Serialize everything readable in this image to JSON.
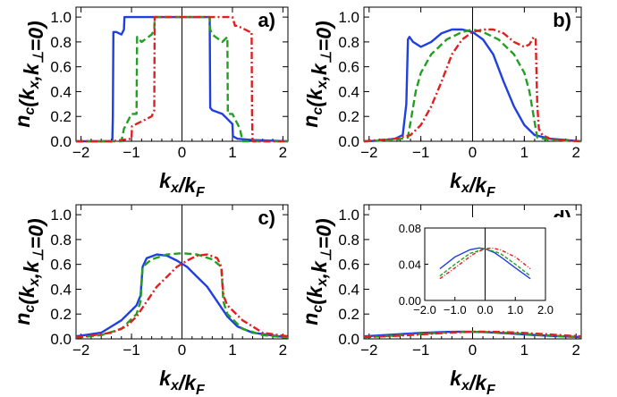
{
  "chart_data": [
    {
      "type": "line",
      "panel_label": "a)",
      "xlabel": "k_x/k_F",
      "ylabel": "n_c(k_x,k_⊥=0)",
      "xlim": [
        -2.1,
        2.1
      ],
      "ylim": [
        0,
        1.08
      ],
      "xticks": [
        "−2",
        "−1",
        "0",
        "1",
        "2"
      ],
      "yticks": [
        "0.0",
        "0.2",
        "0.4",
        "0.6",
        "0.8",
        "1.0"
      ],
      "series": [
        {
          "color": "#1f3fe0",
          "style": "solid",
          "x": [
            -2.1,
            -1.38,
            -1.37,
            -1.36,
            -1.3,
            -1.2,
            -1.15,
            -1.14,
            -1.1,
            -1,
            -0.5,
            0,
            0.5,
            0.55,
            0.56,
            0.6,
            0.8,
            1.0,
            1.01,
            1.1,
            1.4,
            2.1
          ],
          "y": [
            0,
            0,
            0.2,
            0.88,
            0.88,
            0.86,
            0.9,
            1.0,
            1.0,
            1.0,
            1.0,
            1.0,
            1.0,
            1.0,
            0.27,
            0.25,
            0.22,
            0.14,
            0.04,
            0.02,
            0.01,
            0
          ]
        },
        {
          "color": "#22a022",
          "style": "dashed",
          "x": [
            -2.1,
            -1.2,
            -1.15,
            -1.0,
            -0.9,
            -0.89,
            -0.8,
            -0.6,
            -0.55,
            -0.54,
            -0.3,
            0,
            0.3,
            0.55,
            0.56,
            0.6,
            0.8,
            0.9,
            0.91,
            1.0,
            1.15,
            1.2,
            2.1
          ],
          "y": [
            0,
            0,
            0.1,
            0.22,
            0.22,
            0.84,
            0.8,
            0.86,
            0.9,
            1.0,
            1.0,
            1.0,
            1.0,
            1.0,
            0.9,
            0.86,
            0.8,
            0.84,
            0.22,
            0.22,
            0.1,
            0,
            0
          ]
        },
        {
          "color": "#e02020",
          "style": "dashdot",
          "x": [
            -2.1,
            -1.4,
            -1.2,
            -1.0,
            -0.99,
            -0.9,
            -0.6,
            -0.55,
            -0.54,
            -0.3,
            0,
            0.3,
            0.6,
            0.8,
            0.9,
            1.0,
            1.05,
            1.1,
            1.2,
            1.3,
            1.35,
            1.38,
            1.39,
            1.4,
            2.1
          ],
          "y": [
            0,
            0,
            0.01,
            0.02,
            0.12,
            0.14,
            0.2,
            0.25,
            1.0,
            1.0,
            1.0,
            1.0,
            1.0,
            1.0,
            1.0,
            1.0,
            0.93,
            0.93,
            0.91,
            0.89,
            0.88,
            0.88,
            0.2,
            0,
            0
          ]
        }
      ]
    },
    {
      "type": "line",
      "panel_label": "b)",
      "xlabel": "k_x/k_F",
      "ylabel": "n_c(k_x,k_⊥=0)",
      "xlim": [
        -2.1,
        2.1
      ],
      "ylim": [
        0,
        1.08
      ],
      "xticks": [
        "−2",
        "−1",
        "0",
        "1",
        "2"
      ],
      "yticks": [
        "0.0",
        "0.2",
        "0.4",
        "0.6",
        "0.8",
        "1.0"
      ],
      "series": [
        {
          "color": "#1f3fe0",
          "style": "solid",
          "x": [
            -2.1,
            -1.8,
            -1.5,
            -1.35,
            -1.28,
            -1.25,
            -1.22,
            -1.15,
            -1.0,
            -0.8,
            -0.6,
            -0.4,
            -0.2,
            0,
            0.2,
            0.4,
            0.6,
            0.8,
            1.0,
            1.2,
            1.5,
            2.1
          ],
          "y": [
            0,
            0.005,
            0.02,
            0.05,
            0.3,
            0.82,
            0.84,
            0.8,
            0.76,
            0.8,
            0.87,
            0.9,
            0.9,
            0.88,
            0.82,
            0.7,
            0.48,
            0.28,
            0.13,
            0.05,
            0.02,
            0
          ]
        },
        {
          "color": "#22a022",
          "style": "dashed",
          "x": [
            -2.1,
            -1.5,
            -1.25,
            -1.1,
            -1.0,
            -0.8,
            -0.5,
            -0.2,
            0,
            0.2,
            0.5,
            0.8,
            1.0,
            1.1,
            1.25,
            1.5,
            2.1
          ],
          "y": [
            0,
            0.01,
            0.03,
            0.4,
            0.55,
            0.7,
            0.82,
            0.88,
            0.9,
            0.88,
            0.82,
            0.7,
            0.55,
            0.4,
            0.03,
            0.01,
            0
          ]
        },
        {
          "color": "#e02020",
          "style": "dashdot",
          "x": [
            -2.1,
            -1.5,
            -1.2,
            -1.0,
            -0.8,
            -0.6,
            -0.4,
            -0.2,
            0,
            0.2,
            0.4,
            0.6,
            0.8,
            1.0,
            1.1,
            1.18,
            1.22,
            1.25,
            1.28,
            1.35,
            1.5,
            1.8,
            2.1
          ],
          "y": [
            0,
            0.02,
            0.05,
            0.13,
            0.28,
            0.48,
            0.7,
            0.82,
            0.88,
            0.9,
            0.9,
            0.87,
            0.8,
            0.76,
            0.78,
            0.84,
            0.82,
            0.3,
            0.1,
            0.05,
            0.02,
            0.005,
            0
          ]
        }
      ]
    },
    {
      "type": "line",
      "panel_label": "c)",
      "xlabel": "k_x/k_F",
      "ylabel": "n_c(k_x,k_⊥=0)",
      "xlim": [
        -2.1,
        2.1
      ],
      "ylim": [
        0,
        1.08
      ],
      "xticks": [
        "−2",
        "−1",
        "0",
        "1",
        "2"
      ],
      "yticks": [
        "0.0",
        "0.2",
        "0.4",
        "0.6",
        "0.8",
        "1.0"
      ],
      "series": [
        {
          "color": "#1f3fe0",
          "style": "solid",
          "x": [
            -2.1,
            -1.6,
            -1.2,
            -0.9,
            -0.82,
            -0.78,
            -0.7,
            -0.5,
            -0.3,
            -0.1,
            0.1,
            0.3,
            0.5,
            0.7,
            0.9,
            1.1,
            1.4,
            2.1
          ],
          "y": [
            0.02,
            0.05,
            0.15,
            0.27,
            0.35,
            0.58,
            0.65,
            0.68,
            0.67,
            0.63,
            0.58,
            0.5,
            0.42,
            0.3,
            0.18,
            0.1,
            0.05,
            0.01
          ]
        },
        {
          "color": "#22a022",
          "style": "dashed",
          "x": [
            -2.1,
            -1.6,
            -1.2,
            -0.9,
            -0.82,
            -0.78,
            -0.6,
            -0.3,
            0,
            0.3,
            0.6,
            0.78,
            0.82,
            0.9,
            1.2,
            1.6,
            2.1
          ],
          "y": [
            0.01,
            0.03,
            0.08,
            0.2,
            0.3,
            0.58,
            0.64,
            0.68,
            0.69,
            0.68,
            0.64,
            0.58,
            0.3,
            0.2,
            0.08,
            0.03,
            0.01
          ]
        },
        {
          "color": "#e02020",
          "style": "dashdot",
          "x": [
            -2.1,
            -1.4,
            -1.1,
            -0.9,
            -0.7,
            -0.5,
            -0.3,
            -0.1,
            0.1,
            0.3,
            0.5,
            0.7,
            0.78,
            0.82,
            0.9,
            1.2,
            1.6,
            2.1
          ],
          "y": [
            0.01,
            0.05,
            0.1,
            0.18,
            0.3,
            0.42,
            0.5,
            0.58,
            0.63,
            0.67,
            0.68,
            0.65,
            0.58,
            0.35,
            0.27,
            0.15,
            0.05,
            0.02
          ]
        }
      ]
    },
    {
      "type": "line",
      "panel_label": "d)",
      "xlabel": "k_x/k_F",
      "ylabel": "n_c(k_x,k_⊥=0)",
      "xlim": [
        -2.1,
        2.1
      ],
      "ylim": [
        0,
        1.08
      ],
      "xticks": [
        "−2",
        "−1",
        "0",
        "1",
        "2"
      ],
      "yticks": [
        "0.0",
        "0.2",
        "0.4",
        "0.6",
        "0.8",
        "1.0"
      ],
      "series": [
        {
          "color": "#1f3fe0",
          "style": "solid",
          "x": [
            -2.1,
            -1.5,
            -1.0,
            -0.5,
            -0.2,
            0,
            0.3,
            0.6,
            1.0,
            1.5,
            2.1
          ],
          "y": [
            0.02,
            0.035,
            0.048,
            0.056,
            0.058,
            0.057,
            0.053,
            0.046,
            0.036,
            0.024,
            0.015
          ]
        },
        {
          "color": "#22a022",
          "style": "dashed",
          "x": [
            -2.1,
            -1.5,
            -1.0,
            -0.5,
            0,
            0.5,
            1.0,
            1.5,
            2.1
          ],
          "y": [
            0.013,
            0.027,
            0.04,
            0.052,
            0.057,
            0.052,
            0.04,
            0.027,
            0.013
          ]
        },
        {
          "color": "#e02020",
          "style": "dashdot",
          "x": [
            -2.1,
            -1.5,
            -1.0,
            -0.6,
            -0.3,
            0,
            0.2,
            0.5,
            1.0,
            1.5,
            2.1
          ],
          "y": [
            0.015,
            0.024,
            0.036,
            0.046,
            0.053,
            0.057,
            0.058,
            0.056,
            0.048,
            0.035,
            0.02
          ]
        }
      ],
      "inset": {
        "xlim": [
          -2.0,
          2.0
        ],
        "ylim": [
          0,
          0.08
        ],
        "xticks": [
          "−2.0",
          "−1.0",
          "0.0",
          "1.0",
          "2.0"
        ],
        "yticks": [
          "0.00",
          "0.04",
          "0.08"
        ]
      }
    }
  ]
}
